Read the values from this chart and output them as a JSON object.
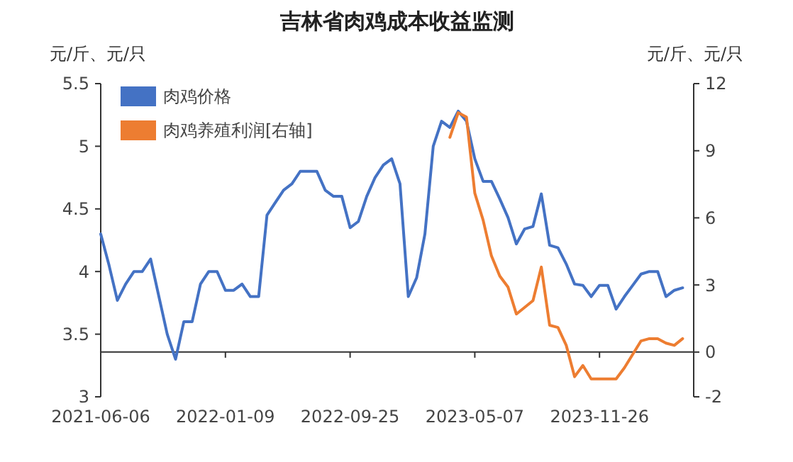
{
  "chart_data": {
    "type": "line",
    "title": "吉林省肉鸡成本收益监测",
    "ylabel": "元/斤、元/只",
    "y2label": "元/斤、元/只",
    "categories": [
      "2021-06-06",
      null,
      null,
      null,
      null,
      null,
      null,
      null,
      null,
      null,
      null,
      null,
      null,
      null,
      null,
      "2022-01-09",
      null,
      null,
      null,
      null,
      null,
      null,
      null,
      null,
      null,
      null,
      null,
      null,
      null,
      null,
      "2022-09-25",
      null,
      null,
      null,
      null,
      null,
      null,
      null,
      null,
      null,
      null,
      null,
      null,
      null,
      null,
      "2023-05-07",
      null,
      null,
      null,
      null,
      null,
      null,
      null,
      null,
      null,
      null,
      null,
      null,
      null,
      null,
      "2023-11-26",
      null,
      null,
      null,
      null,
      null,
      null,
      null,
      null,
      null,
      null
    ],
    "series": [
      {
        "name": "肉鸡价格",
        "color": "#4472c4",
        "values": [
          4.3,
          4.05,
          3.77,
          3.9,
          4.0,
          4.0,
          4.1,
          3.8,
          3.5,
          3.3,
          3.6,
          3.6,
          3.9,
          4.0,
          4.0,
          3.85,
          3.85,
          3.9,
          3.8,
          3.8,
          4.45,
          4.55,
          4.65,
          4.7,
          4.8,
          4.8,
          4.8,
          4.65,
          4.6,
          4.6,
          4.35,
          4.4,
          4.6,
          4.75,
          4.85,
          4.9,
          4.7,
          3.8,
          3.95,
          4.3,
          5.0,
          5.2,
          5.15,
          5.28,
          5.2,
          4.9,
          4.72,
          4.72,
          4.58,
          4.43,
          4.22,
          4.34,
          4.36,
          4.62,
          4.21,
          4.19,
          4.06,
          3.9,
          3.89,
          3.8,
          3.89,
          3.89,
          3.7,
          3.8,
          3.89,
          3.98,
          4.0,
          4.0,
          3.8,
          3.85,
          3.87
        ]
      },
      {
        "name": "肉鸡养殖利润[右轴]",
        "color": "#ed7d31",
        "axis": "y2",
        "values": [
          null,
          null,
          null,
          null,
          null,
          null,
          null,
          null,
          null,
          null,
          null,
          null,
          null,
          null,
          null,
          null,
          null,
          null,
          null,
          null,
          null,
          null,
          null,
          null,
          null,
          null,
          null,
          null,
          null,
          null,
          null,
          null,
          null,
          null,
          null,
          null,
          null,
          null,
          null,
          null,
          null,
          null,
          9.6,
          10.7,
          10.5,
          7.1,
          5.9,
          4.3,
          3.4,
          2.9,
          1.7,
          2.0,
          2.3,
          3.8,
          1.2,
          1.1,
          0.3,
          -1.1,
          -0.6,
          -1.2,
          -1.2,
          -1.2,
          -1.2,
          -0.7,
          -0.1,
          0.5,
          0.6,
          0.6,
          0.4,
          0.3,
          0.6
        ]
      }
    ],
    "ylim": [
      3,
      5.5
    ],
    "yticks": [
      3,
      3.5,
      4,
      4.5,
      5,
      5.5
    ],
    "y2lim": [
      -2,
      12
    ],
    "y2ticks": [
      -2,
      0,
      3,
      6,
      9,
      12
    ],
    "legend": "top left",
    "marker": "none",
    "line_style": "solid"
  }
}
